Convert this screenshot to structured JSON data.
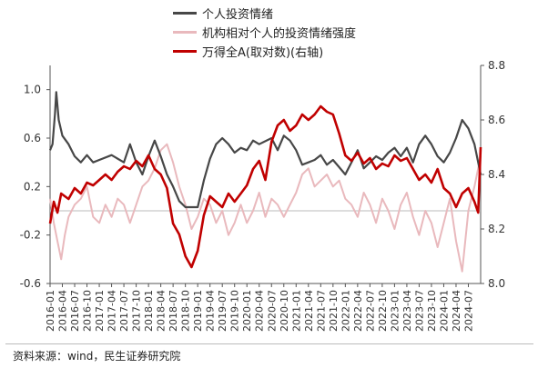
{
  "chart_data": {
    "type": "line",
    "legend_position": "top",
    "series": [
      {
        "name": "个人投资情绪",
        "axis": "left",
        "color": "#474747"
      },
      {
        "name": "机构相对个人的投资情绪强度",
        "axis": "left",
        "color": "#e9b9bd"
      },
      {
        "name": "万得全A(取对数)(右轴)",
        "axis": "right",
        "color": "#c00000"
      }
    ],
    "left_axis": {
      "ylim": [
        -0.6,
        1.2
      ],
      "ticks": [
        "1.0",
        "0.6",
        "0.2",
        "-0.2",
        "-0.6"
      ]
    },
    "right_axis": {
      "ylim": [
        8.0,
        8.8
      ],
      "ticks": [
        "8.8",
        "8.6",
        "8.4",
        "8.2",
        "8.0"
      ]
    },
    "x_ticks": [
      "2016-01",
      "2016-04",
      "2016-07",
      "2016-10",
      "2017-01",
      "2017-04",
      "2017-07",
      "2017-10",
      "2018-01",
      "2018-04",
      "2018-07",
      "2018-10",
      "2019-01",
      "2019-04",
      "2019-07",
      "2019-10",
      "2020-01",
      "2020-04",
      "2020-07",
      "2020-10",
      "2021-01",
      "2021-04",
      "2021-07",
      "2021-10",
      "2022-01",
      "2022-04",
      "2022-07",
      "2022-10",
      "2023-01",
      "2023-04",
      "2023-07",
      "2023-10",
      "2024-01",
      "2024-04",
      "2024-07"
    ],
    "x_range": [
      "2016-01",
      "2024-10"
    ],
    "points": {
      "individual": [
        [
          0,
          0.5
        ],
        [
          0.2,
          0.55
        ],
        [
          0.4,
          0.8
        ],
        [
          0.5,
          0.98
        ],
        [
          0.7,
          0.75
        ],
        [
          1,
          0.62
        ],
        [
          1.5,
          0.55
        ],
        [
          2,
          0.45
        ],
        [
          2.5,
          0.4
        ],
        [
          3,
          0.46
        ],
        [
          3.5,
          0.4
        ],
        [
          4,
          0.42
        ],
        [
          5,
          0.46
        ],
        [
          6,
          0.4
        ],
        [
          6.5,
          0.55
        ],
        [
          7,
          0.4
        ],
        [
          7.5,
          0.3
        ],
        [
          8,
          0.45
        ],
        [
          8.5,
          0.58
        ],
        [
          9,
          0.45
        ],
        [
          9.5,
          0.3
        ],
        [
          10,
          0.2
        ],
        [
          10.5,
          0.08
        ],
        [
          11,
          0.03
        ],
        [
          11.5,
          0.03
        ],
        [
          12,
          0.03
        ],
        [
          12.5,
          0.25
        ],
        [
          13,
          0.43
        ],
        [
          13.5,
          0.55
        ],
        [
          14,
          0.6
        ],
        [
          14.5,
          0.55
        ],
        [
          15,
          0.48
        ],
        [
          15.5,
          0.52
        ],
        [
          16,
          0.5
        ],
        [
          16.5,
          0.58
        ],
        [
          17,
          0.55
        ],
        [
          18,
          0.6
        ],
        [
          18.5,
          0.5
        ],
        [
          19,
          0.62
        ],
        [
          19.5,
          0.58
        ],
        [
          20,
          0.5
        ],
        [
          20.5,
          0.38
        ],
        [
          21,
          0.4
        ],
        [
          21.5,
          0.42
        ],
        [
          22,
          0.46
        ],
        [
          22.5,
          0.38
        ],
        [
          23,
          0.42
        ],
        [
          23.5,
          0.36
        ],
        [
          24,
          0.3
        ],
        [
          24.5,
          0.4
        ],
        [
          25,
          0.5
        ],
        [
          25.5,
          0.35
        ],
        [
          26,
          0.4
        ],
        [
          26.5,
          0.45
        ],
        [
          27,
          0.42
        ],
        [
          27.5,
          0.48
        ],
        [
          28,
          0.52
        ],
        [
          28.5,
          0.45
        ],
        [
          29,
          0.52
        ],
        [
          29.5,
          0.4
        ],
        [
          30,
          0.55
        ],
        [
          30.5,
          0.62
        ],
        [
          31,
          0.55
        ],
        [
          31.5,
          0.45
        ],
        [
          32,
          0.4
        ],
        [
          32.5,
          0.48
        ],
        [
          33,
          0.6
        ],
        [
          33.5,
          0.75
        ],
        [
          34,
          0.68
        ],
        [
          34.5,
          0.55
        ],
        [
          35,
          0.3
        ]
      ],
      "institutional": [
        [
          0,
          0.1
        ],
        [
          0.3,
          -0.1
        ],
        [
          0.6,
          -0.25
        ],
        [
          0.9,
          -0.4
        ],
        [
          1.2,
          -0.2
        ],
        [
          1.5,
          -0.05
        ],
        [
          2,
          0.05
        ],
        [
          2.5,
          0.1
        ],
        [
          3,
          0.2
        ],
        [
          3.5,
          -0.05
        ],
        [
          4,
          -0.1
        ],
        [
          4.5,
          0.05
        ],
        [
          5,
          -0.05
        ],
        [
          5.5,
          0.1
        ],
        [
          6,
          0.05
        ],
        [
          6.5,
          -0.1
        ],
        [
          7,
          0.05
        ],
        [
          7.5,
          0.2
        ],
        [
          8,
          0.25
        ],
        [
          8.5,
          0.35
        ],
        [
          9,
          0.5
        ],
        [
          9.5,
          0.55
        ],
        [
          10,
          0.4
        ],
        [
          10.5,
          0.2
        ],
        [
          11,
          0.05
        ],
        [
          11.5,
          -0.15
        ],
        [
          12,
          -0.05
        ],
        [
          12.5,
          0.1
        ],
        [
          13,
          0.05
        ],
        [
          13.5,
          -0.1
        ],
        [
          14,
          0.0
        ],
        [
          14.5,
          -0.2
        ],
        [
          15,
          -0.1
        ],
        [
          15.5,
          0.05
        ],
        [
          16,
          -0.1
        ],
        [
          16.5,
          0.0
        ],
        [
          17,
          0.15
        ],
        [
          17.5,
          -0.05
        ],
        [
          18,
          0.1
        ],
        [
          18.5,
          0.05
        ],
        [
          19,
          -0.05
        ],
        [
          19.5,
          0.05
        ],
        [
          20,
          0.15
        ],
        [
          20.5,
          0.3
        ],
        [
          21,
          0.35
        ],
        [
          21.5,
          0.2
        ],
        [
          22,
          0.25
        ],
        [
          22.5,
          0.3
        ],
        [
          23,
          0.2
        ],
        [
          23.5,
          0.25
        ],
        [
          24,
          0.1
        ],
        [
          24.5,
          0.05
        ],
        [
          25,
          -0.05
        ],
        [
          25.5,
          0.15
        ],
        [
          26,
          0.05
        ],
        [
          26.5,
          -0.1
        ],
        [
          27,
          0.1
        ],
        [
          27.5,
          0.0
        ],
        [
          28,
          -0.15
        ],
        [
          28.5,
          0.05
        ],
        [
          29,
          0.15
        ],
        [
          29.5,
          -0.05
        ],
        [
          30,
          -0.2
        ],
        [
          30.5,
          0.0
        ],
        [
          31,
          -0.1
        ],
        [
          31.5,
          -0.3
        ],
        [
          32,
          -0.1
        ],
        [
          32.5,
          0.1
        ],
        [
          33,
          -0.25
        ],
        [
          33.5,
          -0.5
        ],
        [
          34,
          0.0
        ],
        [
          34.5,
          0.2
        ],
        [
          35,
          0.45
        ]
      ],
      "wind_a": [
        [
          0,
          8.22
        ],
        [
          0.3,
          8.3
        ],
        [
          0.6,
          8.26
        ],
        [
          0.9,
          8.33
        ],
        [
          1.5,
          8.31
        ],
        [
          2,
          8.35
        ],
        [
          2.5,
          8.33
        ],
        [
          3,
          8.37
        ],
        [
          3.5,
          8.36
        ],
        [
          4,
          8.38
        ],
        [
          4.5,
          8.4
        ],
        [
          5,
          8.38
        ],
        [
          5.5,
          8.41
        ],
        [
          6,
          8.43
        ],
        [
          6.5,
          8.42
        ],
        [
          7,
          8.45
        ],
        [
          7.5,
          8.43
        ],
        [
          8,
          8.47
        ],
        [
          8.5,
          8.42
        ],
        [
          9,
          8.4
        ],
        [
          9.5,
          8.35
        ],
        [
          10,
          8.22
        ],
        [
          10.5,
          8.18
        ],
        [
          11,
          8.1
        ],
        [
          11.5,
          8.06
        ],
        [
          12,
          8.12
        ],
        [
          12.5,
          8.25
        ],
        [
          13,
          8.32
        ],
        [
          13.5,
          8.3
        ],
        [
          14,
          8.28
        ],
        [
          14.5,
          8.33
        ],
        [
          15,
          8.3
        ],
        [
          15.5,
          8.33
        ],
        [
          16,
          8.36
        ],
        [
          16.5,
          8.42
        ],
        [
          17,
          8.45
        ],
        [
          17.5,
          8.38
        ],
        [
          18,
          8.52
        ],
        [
          18.5,
          8.58
        ],
        [
          19,
          8.6
        ],
        [
          19.5,
          8.56
        ],
        [
          20,
          8.58
        ],
        [
          20.5,
          8.62
        ],
        [
          21,
          8.6
        ],
        [
          21.5,
          8.62
        ],
        [
          22,
          8.65
        ],
        [
          22.5,
          8.63
        ],
        [
          23,
          8.62
        ],
        [
          23.5,
          8.55
        ],
        [
          24,
          8.47
        ],
        [
          24.5,
          8.45
        ],
        [
          25,
          8.48
        ],
        [
          25.5,
          8.44
        ],
        [
          26,
          8.46
        ],
        [
          26.5,
          8.42
        ],
        [
          27,
          8.44
        ],
        [
          27.5,
          8.43
        ],
        [
          28,
          8.47
        ],
        [
          28.5,
          8.45
        ],
        [
          29,
          8.46
        ],
        [
          29.5,
          8.42
        ],
        [
          30,
          8.38
        ],
        [
          30.5,
          8.4
        ],
        [
          31,
          8.37
        ],
        [
          31.5,
          8.42
        ],
        [
          32,
          8.35
        ],
        [
          32.5,
          8.33
        ],
        [
          33,
          8.28
        ],
        [
          33.5,
          8.33
        ],
        [
          34,
          8.35
        ],
        [
          34.5,
          8.3
        ],
        [
          34.8,
          8.26
        ],
        [
          35,
          8.5
        ]
      ]
    }
  },
  "source": "资料来源：wind，民生证券研究院"
}
